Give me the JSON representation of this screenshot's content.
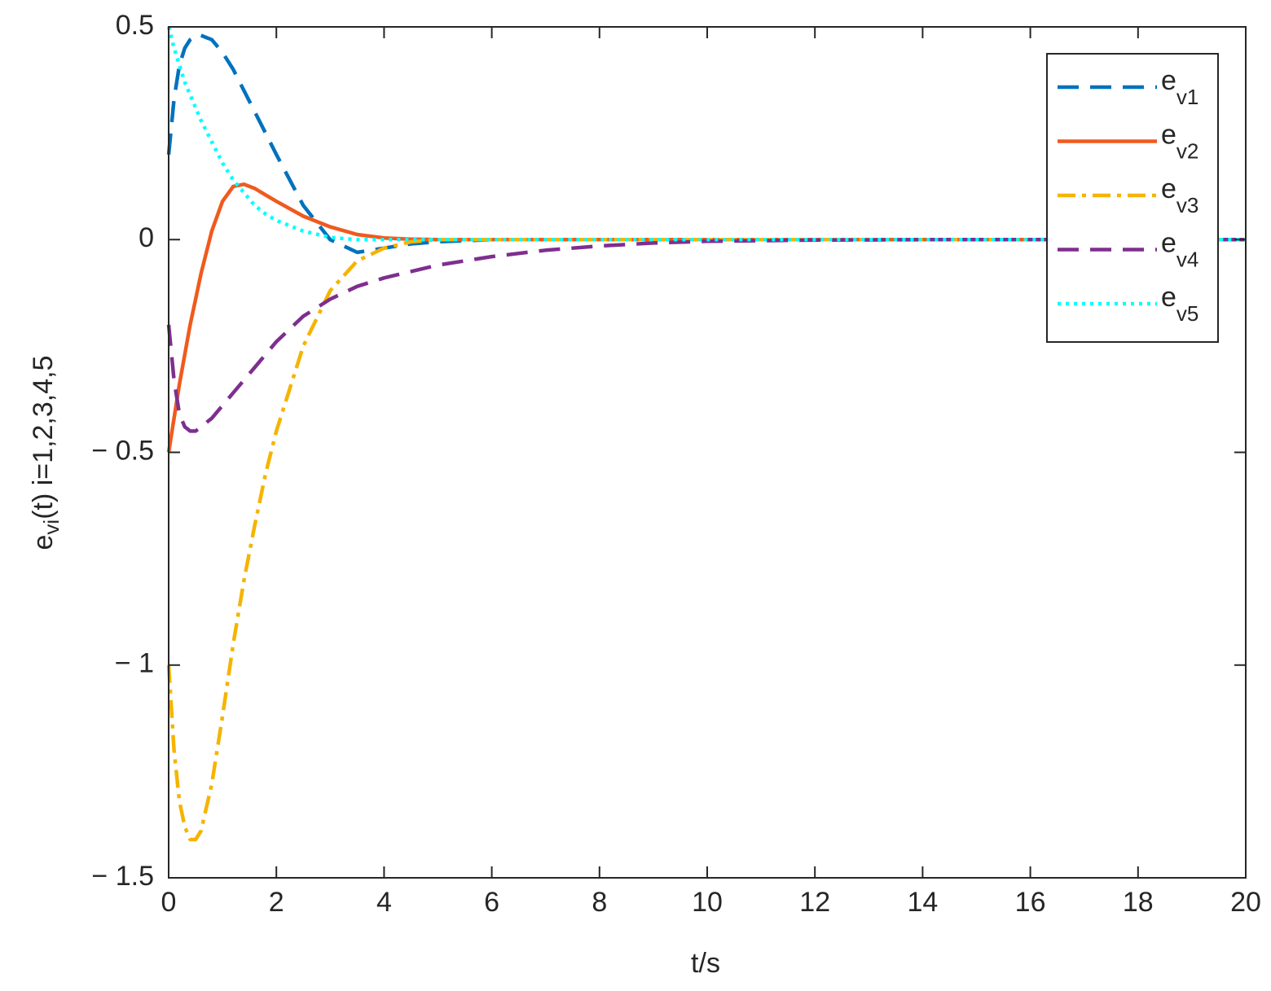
{
  "chart_data": {
    "type": "line",
    "xlabel": "t/s",
    "ylabel": {
      "base": "e",
      "sub": "vi",
      "rest": "(t) i=1,2,3,4,5"
    },
    "x": [
      0,
      0.1,
      0.2,
      0.3,
      0.4,
      0.5,
      0.6,
      0.8,
      1,
      1.2,
      1.4,
      1.6,
      1.8,
      2,
      2.5,
      3,
      3.5,
      4,
      4.5,
      5,
      6,
      7,
      8,
      9,
      10,
      12,
      14,
      16,
      18,
      20
    ],
    "series": [
      {
        "name": "e",
        "subscript": "v1",
        "color": "#0072bd",
        "dash": "26,14",
        "values": [
          0.2,
          0.33,
          0.41,
          0.45,
          0.47,
          0.48,
          0.48,
          0.47,
          0.44,
          0.4,
          0.35,
          0.3,
          0.25,
          0.2,
          0.08,
          0.0,
          -0.03,
          -0.02,
          -0.01,
          -0.005,
          0,
          0,
          0,
          0,
          0,
          0,
          0,
          0,
          0,
          0
        ]
      },
      {
        "name": "e",
        "subscript": "v2",
        "color": "#f05a1e",
        "dash": "none",
        "values": [
          -0.5,
          -0.42,
          -0.34,
          -0.27,
          -0.2,
          -0.14,
          -0.08,
          0.02,
          0.09,
          0.125,
          0.13,
          0.12,
          0.105,
          0.09,
          0.055,
          0.03,
          0.012,
          0.004,
          0.001,
          0,
          0,
          0,
          0,
          0,
          0,
          0,
          0,
          0,
          0,
          0
        ]
      },
      {
        "name": "e",
        "subscript": "v3",
        "color": "#f5b400",
        "dash": "22,8,5,8",
        "values": [
          -1,
          -1.2,
          -1.32,
          -1.38,
          -1.41,
          -1.41,
          -1.39,
          -1.28,
          -1.12,
          -0.95,
          -0.8,
          -0.67,
          -0.55,
          -0.45,
          -0.25,
          -0.12,
          -0.05,
          -0.02,
          -0.005,
          0,
          0,
          0,
          0,
          0,
          0,
          0,
          0,
          0,
          0,
          0
        ]
      },
      {
        "name": "e",
        "subscript": "v4",
        "color": "#7e2f8e",
        "dash": "26,14",
        "values": [
          -0.2,
          -0.33,
          -0.41,
          -0.44,
          -0.45,
          -0.45,
          -0.44,
          -0.42,
          -0.39,
          -0.36,
          -0.33,
          -0.3,
          -0.27,
          -0.24,
          -0.18,
          -0.14,
          -0.11,
          -0.09,
          -0.075,
          -0.06,
          -0.04,
          -0.025,
          -0.015,
          -0.008,
          -0.004,
          -0.001,
          0,
          0,
          0,
          0
        ]
      },
      {
        "name": "e",
        "subscript": "v5",
        "color": "#00ffff",
        "dash": "4,6",
        "values": [
          0.5,
          0.45,
          0.41,
          0.37,
          0.34,
          0.31,
          0.28,
          0.23,
          0.18,
          0.14,
          0.11,
          0.08,
          0.06,
          0.045,
          0.02,
          0.005,
          0,
          0,
          0,
          0,
          0,
          0,
          0,
          0,
          0,
          0,
          0,
          0,
          0,
          0
        ]
      }
    ],
    "xlim": [
      0,
      20
    ],
    "xticks": [
      0,
      2,
      4,
      6,
      8,
      10,
      12,
      14,
      16,
      18,
      20
    ],
    "ylim": [
      -1.5,
      0.5
    ],
    "yticks": [
      {
        "value": -1.5,
        "label": "− 1.5"
      },
      {
        "value": -1,
        "label": "− 1"
      },
      {
        "value": -0.5,
        "label": "− 0.5"
      },
      0,
      0.5
    ],
    "legend": "upper right"
  }
}
